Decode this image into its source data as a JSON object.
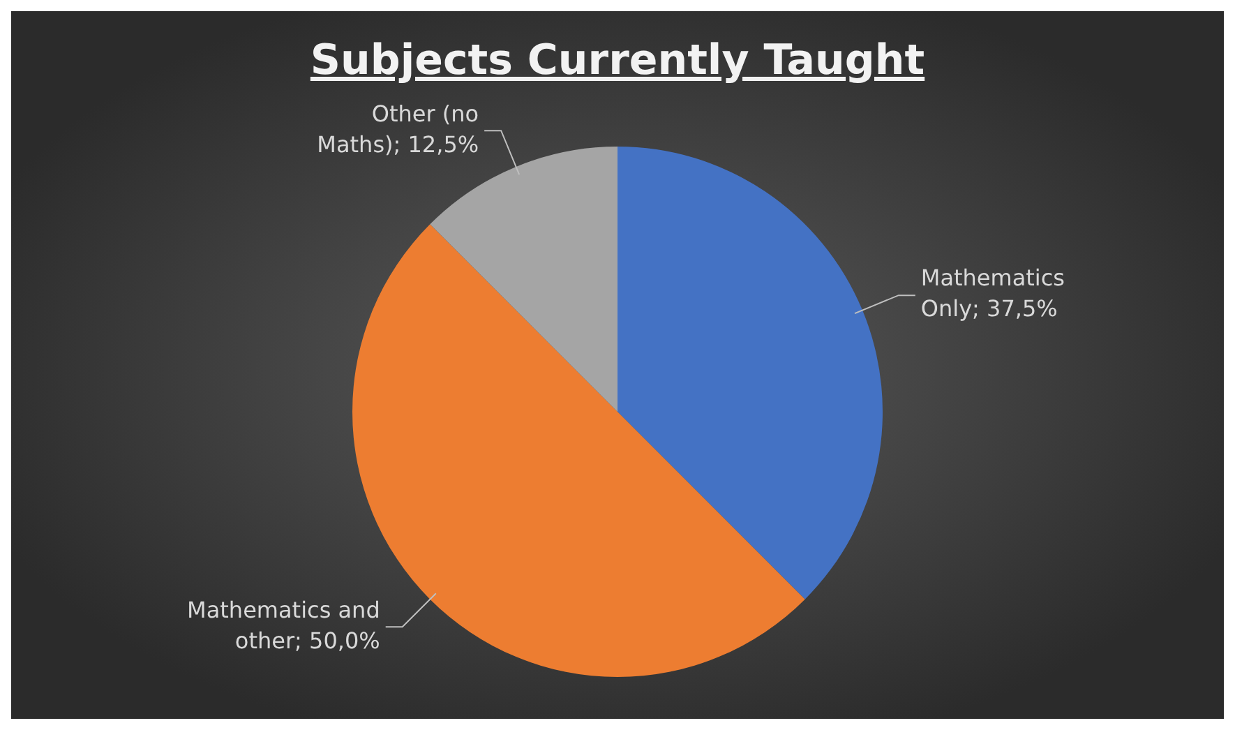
{
  "chart_data": {
    "type": "pie",
    "title": "Subjects Currently Taught",
    "categories": [
      "Mathematics Only",
      "Mathematics and other",
      "Other (no Maths)"
    ],
    "values": [
      37.5,
      50,
      12.5
    ],
    "colors": [
      "#4472c4",
      "#ed7d31",
      "#a5a5a5"
    ],
    "value_labels": [
      "37,5%",
      "50,0%",
      "12,5%"
    ],
    "legend": false
  }
}
